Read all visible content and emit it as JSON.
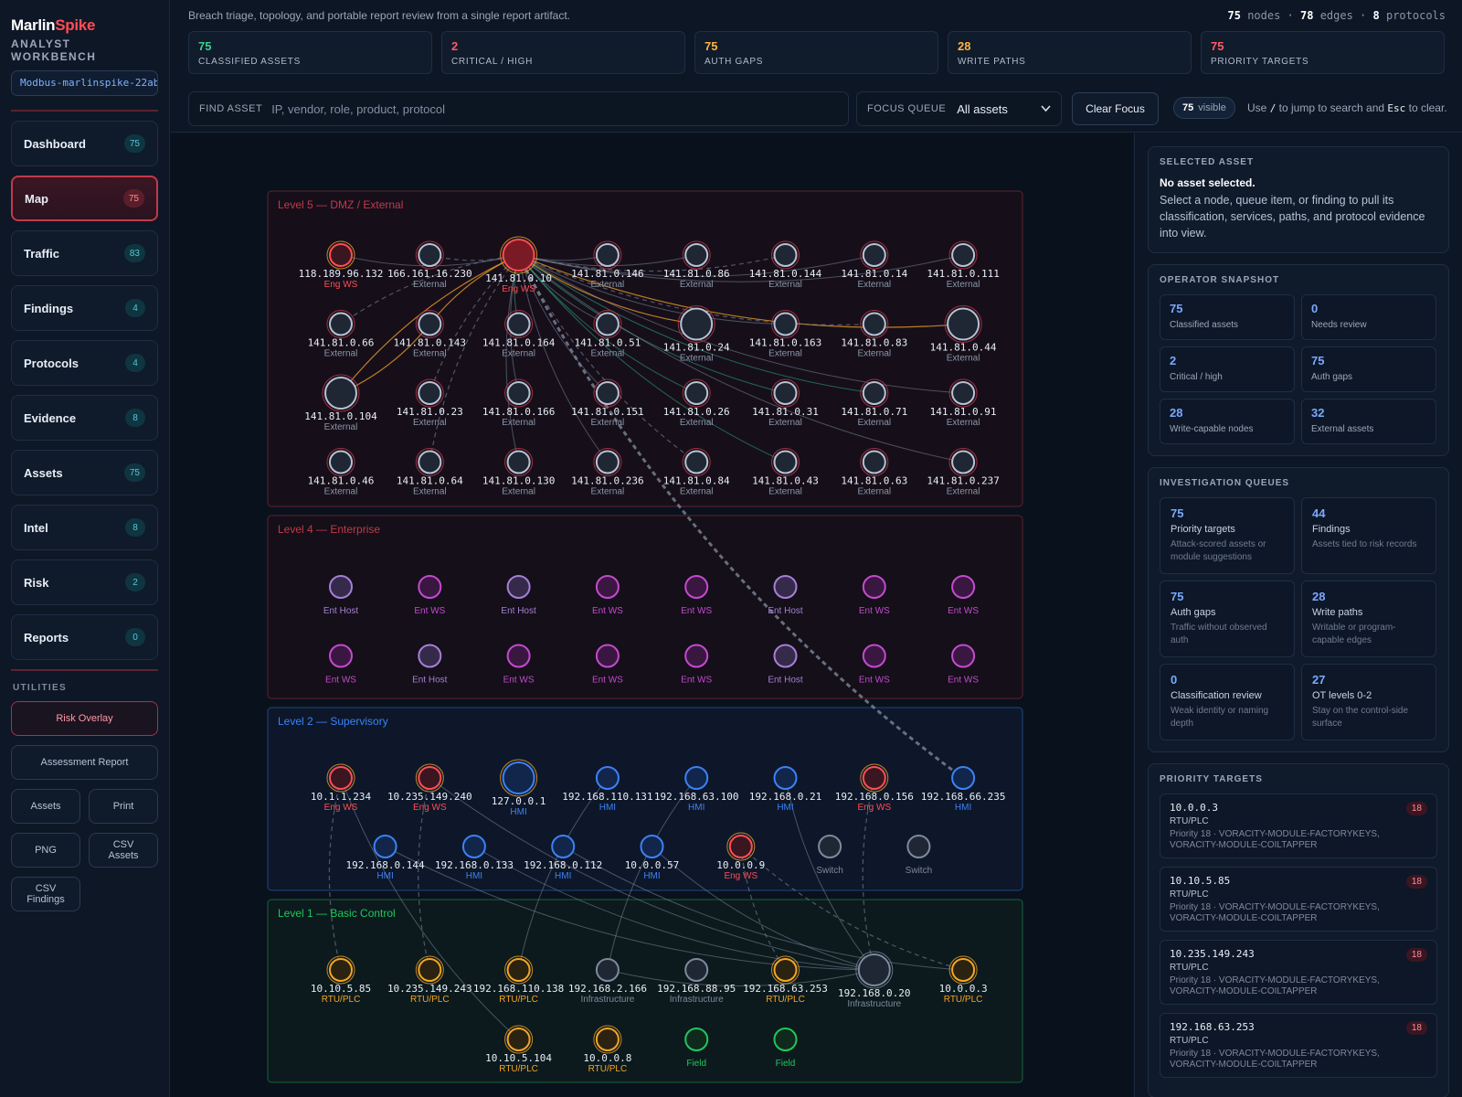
{
  "brand": {
    "name_a": "Marlin",
    "name_b": "Spike",
    "subtitle": "ANALYST WORKBENCH",
    "dataset": "Modbus-marlinspike-22ab"
  },
  "nav": [
    {
      "label": "Dashboard",
      "count": "75"
    },
    {
      "label": "Map",
      "count": "75",
      "active": true
    },
    {
      "label": "Traffic",
      "count": "83"
    },
    {
      "label": "Findings",
      "count": "4"
    },
    {
      "label": "Protocols",
      "count": "4"
    },
    {
      "label": "Evidence",
      "count": "8"
    },
    {
      "label": "Assets",
      "count": "75"
    },
    {
      "label": "Intel",
      "count": "8"
    },
    {
      "label": "Risk",
      "count": "2"
    },
    {
      "label": "Reports",
      "count": "0"
    }
  ],
  "utilities": {
    "title": "UTILITIES",
    "risk_overlay": "Risk Overlay",
    "assessment_report": "Assessment Report",
    "assets": "Assets",
    "print": "Print",
    "png": "PNG",
    "csv_assets": "CSV Assets",
    "csv_findings": "CSV Findings"
  },
  "header": {
    "tagline": "Breach triage, topology, and portable report review from a single report artifact.",
    "totals": {
      "nodes": "75",
      "nodes_label": "nodes",
      "edges": "78",
      "edges_label": "edges",
      "protocols": "8",
      "protocols_label": "protocols"
    },
    "stats": [
      {
        "value": "75",
        "label": "CLASSIFIED ASSETS",
        "color": "#3ecf8e"
      },
      {
        "value": "2",
        "label": "CRITICAL / HIGH",
        "color": "#ff5a64"
      },
      {
        "value": "75",
        "label": "AUTH GAPS",
        "color": "#ffb340"
      },
      {
        "value": "28",
        "label": "WRITE PATHS",
        "color": "#ffb340"
      },
      {
        "value": "75",
        "label": "PRIORITY TARGETS",
        "color": "#ff5a64"
      }
    ],
    "search_label": "FIND ASSET",
    "search_placeholder": "IP, vendor, role, product, protocol",
    "focus_label": "FOCUS QUEUE",
    "focus_value": "All assets",
    "clear_label": "Clear Focus",
    "visible_count": "75",
    "visible_label": "visible",
    "hint_a": "Use",
    "hint_key1": "/",
    "hint_b": "to jump to search and",
    "hint_key2": "Esc",
    "hint_c": "to clear."
  },
  "map": {
    "colors": {
      "eng": "#ff4d55",
      "external": "#8a97a9",
      "hmi": "#3b82f6",
      "plc": "#f5a524",
      "field": "#22c55e",
      "entws": "#c44ad0",
      "enthost": "#a67fd6",
      "infra": "#7d8a9c"
    },
    "zones": [
      {
        "id": "l5",
        "title": "Level 5 — DMZ / External",
        "color": "#c2394a"
      },
      {
        "id": "l4",
        "title": "Level 4 — Enterprise",
        "color": "#c2394a"
      },
      {
        "id": "l2",
        "title": "Level 2 — Supervisory",
        "color": "#3b82f6"
      },
      {
        "id": "l1",
        "title": "Level 1 — Basic Control",
        "color": "#22c55e"
      }
    ],
    "nodes": [
      {
        "id": "n0",
        "zone": "l5",
        "ip": "118.189.96.132",
        "role": "Eng WS",
        "type": "eng"
      },
      {
        "id": "n1",
        "zone": "l5",
        "ip": "166.161.16.230",
        "role": "External",
        "type": "external"
      },
      {
        "id": "n2",
        "zone": "l5",
        "ip": "141.81.0.10",
        "role": "Eng WS",
        "type": "eng",
        "big": true
      },
      {
        "id": "n3",
        "zone": "l5",
        "ip": "141.81.0.146",
        "role": "External",
        "type": "external"
      },
      {
        "id": "n4",
        "zone": "l5",
        "ip": "141.81.0.86",
        "role": "External",
        "type": "external"
      },
      {
        "id": "n5",
        "zone": "l5",
        "ip": "141.81.0.144",
        "role": "External",
        "type": "external"
      },
      {
        "id": "n6",
        "zone": "l5",
        "ip": "141.81.0.14",
        "role": "External",
        "type": "external"
      },
      {
        "id": "n7",
        "zone": "l5",
        "ip": "141.81.0.111",
        "role": "External",
        "type": "external"
      },
      {
        "id": "n8",
        "zone": "l5",
        "ip": "141.81.0.66",
        "role": "External",
        "type": "external"
      },
      {
        "id": "n9",
        "zone": "l5",
        "ip": "141.81.0.143",
        "role": "External",
        "type": "external"
      },
      {
        "id": "n10",
        "zone": "l5",
        "ip": "141.81.0.164",
        "role": "External",
        "type": "external"
      },
      {
        "id": "n11",
        "zone": "l5",
        "ip": "141.81.0.51",
        "role": "External",
        "type": "external"
      },
      {
        "id": "n12",
        "zone": "l5",
        "ip": "141.81.0.24",
        "role": "External",
        "type": "external",
        "big": true
      },
      {
        "id": "n13",
        "zone": "l5",
        "ip": "141.81.0.163",
        "role": "External",
        "type": "external"
      },
      {
        "id": "n14",
        "zone": "l5",
        "ip": "141.81.0.83",
        "role": "External",
        "type": "external"
      },
      {
        "id": "n15",
        "zone": "l5",
        "ip": "141.81.0.44",
        "role": "External",
        "type": "external",
        "big": true
      },
      {
        "id": "n16",
        "zone": "l5",
        "ip": "141.81.0.104",
        "role": "External",
        "type": "external",
        "big": true
      },
      {
        "id": "n17",
        "zone": "l5",
        "ip": "141.81.0.23",
        "role": "External",
        "type": "external"
      },
      {
        "id": "n18",
        "zone": "l5",
        "ip": "141.81.0.166",
        "role": "External",
        "type": "external"
      },
      {
        "id": "n19",
        "zone": "l5",
        "ip": "141.81.0.151",
        "role": "External",
        "type": "external"
      },
      {
        "id": "n20",
        "zone": "l5",
        "ip": "141.81.0.26",
        "role": "External",
        "type": "external"
      },
      {
        "id": "n21",
        "zone": "l5",
        "ip": "141.81.0.31",
        "role": "External",
        "type": "external"
      },
      {
        "id": "n22",
        "zone": "l5",
        "ip": "141.81.0.71",
        "role": "External",
        "type": "external"
      },
      {
        "id": "n23",
        "zone": "l5",
        "ip": "141.81.0.91",
        "role": "External",
        "type": "external"
      },
      {
        "id": "n24",
        "zone": "l5",
        "ip": "141.81.0.46",
        "role": "External",
        "type": "external"
      },
      {
        "id": "n25",
        "zone": "l5",
        "ip": "141.81.0.64",
        "role": "External",
        "type": "external"
      },
      {
        "id": "n26",
        "zone": "l5",
        "ip": "141.81.0.130",
        "role": "External",
        "type": "external"
      },
      {
        "id": "n27",
        "zone": "l5",
        "ip": "141.81.0.236",
        "role": "External",
        "type": "external"
      },
      {
        "id": "n28",
        "zone": "l5",
        "ip": "141.81.0.84",
        "role": "External",
        "type": "external"
      },
      {
        "id": "n29",
        "zone": "l5",
        "ip": "141.81.0.43",
        "role": "External",
        "type": "external"
      },
      {
        "id": "n30",
        "zone": "l5",
        "ip": "141.81.0.63",
        "role": "External",
        "type": "external"
      },
      {
        "id": "n31",
        "zone": "l5",
        "ip": "141.81.0.237",
        "role": "External",
        "type": "external"
      },
      {
        "id": "e0",
        "zone": "l4",
        "ip": "",
        "role": "Ent Host",
        "type": "enthost"
      },
      {
        "id": "e1",
        "zone": "l4",
        "ip": "",
        "role": "Ent WS",
        "type": "entws"
      },
      {
        "id": "e2",
        "zone": "l4",
        "ip": "",
        "role": "Ent Host",
        "type": "enthost"
      },
      {
        "id": "e3",
        "zone": "l4",
        "ip": "",
        "role": "Ent WS",
        "type": "entws"
      },
      {
        "id": "e4",
        "zone": "l4",
        "ip": "",
        "role": "Ent WS",
        "type": "entws"
      },
      {
        "id": "e5",
        "zone": "l4",
        "ip": "",
        "role": "Ent Host",
        "type": "enthost"
      },
      {
        "id": "e6",
        "zone": "l4",
        "ip": "",
        "role": "Ent WS",
        "type": "entws"
      },
      {
        "id": "e7",
        "zone": "l4",
        "ip": "",
        "role": "Ent WS",
        "type": "entws"
      },
      {
        "id": "e8",
        "zone": "l4",
        "ip": "",
        "role": "Ent WS",
        "type": "entws"
      },
      {
        "id": "e9",
        "zone": "l4",
        "ip": "",
        "role": "Ent Host",
        "type": "enthost"
      },
      {
        "id": "e10",
        "zone": "l4",
        "ip": "",
        "role": "Ent WS",
        "type": "entws"
      },
      {
        "id": "e11",
        "zone": "l4",
        "ip": "",
        "role": "Ent WS",
        "type": "entws"
      },
      {
        "id": "e12",
        "zone": "l4",
        "ip": "",
        "role": "Ent WS",
        "type": "entws"
      },
      {
        "id": "e13",
        "zone": "l4",
        "ip": "",
        "role": "Ent Host",
        "type": "enthost"
      },
      {
        "id": "e14",
        "zone": "l4",
        "ip": "",
        "role": "Ent WS",
        "type": "entws"
      },
      {
        "id": "e15",
        "zone": "l4",
        "ip": "",
        "role": "Ent WS",
        "type": "entws"
      },
      {
        "id": "s0",
        "zone": "l2",
        "ip": "10.1.1.234",
        "role": "Eng WS",
        "type": "eng"
      },
      {
        "id": "s1",
        "zone": "l2",
        "ip": "10.235.149.240",
        "role": "Eng WS",
        "type": "eng"
      },
      {
        "id": "s2",
        "zone": "l2",
        "ip": "127.0.0.1",
        "role": "HMI",
        "type": "hmi",
        "big": true
      },
      {
        "id": "s3",
        "zone": "l2",
        "ip": "192.168.110.131",
        "role": "HMI",
        "type": "hmi"
      },
      {
        "id": "s4",
        "zone": "l2",
        "ip": "192.168.63.100",
        "role": "HMI",
        "type": "hmi"
      },
      {
        "id": "s5",
        "zone": "l2",
        "ip": "192.168.0.21",
        "role": "HMI",
        "type": "hmi"
      },
      {
        "id": "s6",
        "zone": "l2",
        "ip": "192.168.0.156",
        "role": "Eng WS",
        "type": "eng"
      },
      {
        "id": "s7",
        "zone": "l2",
        "ip": "192.168.66.235",
        "role": "HMI",
        "type": "hmi"
      },
      {
        "id": "s8",
        "zone": "l2",
        "ip": "192.168.0.144",
        "role": "HMI",
        "type": "hmi"
      },
      {
        "id": "s9",
        "zone": "l2",
        "ip": "192.168.0.133",
        "role": "HMI",
        "type": "hmi"
      },
      {
        "id": "s10",
        "zone": "l2",
        "ip": "192.168.0.112",
        "role": "HMI",
        "type": "hmi"
      },
      {
        "id": "s11",
        "zone": "l2",
        "ip": "10.0.0.57",
        "role": "HMI",
        "type": "hmi"
      },
      {
        "id": "s12",
        "zone": "l2",
        "ip": "10.0.0.9",
        "role": "Eng WS",
        "type": "eng"
      },
      {
        "id": "s13",
        "zone": "l2",
        "ip": "",
        "role": "Switch",
        "type": "infra"
      },
      {
        "id": "s14",
        "zone": "l2",
        "ip": "",
        "role": "Switch",
        "type": "infra"
      },
      {
        "id": "b0",
        "zone": "l1",
        "ip": "10.10.5.85",
        "role": "RTU/PLC",
        "type": "plc"
      },
      {
        "id": "b1",
        "zone": "l1",
        "ip": "10.235.149.243",
        "role": "RTU/PLC",
        "type": "plc"
      },
      {
        "id": "b2",
        "zone": "l1",
        "ip": "192.168.110.138",
        "role": "RTU/PLC",
        "type": "plc"
      },
      {
        "id": "b3",
        "zone": "l1",
        "ip": "192.168.2.166",
        "role": "Infrastructure",
        "type": "infra"
      },
      {
        "id": "b4",
        "zone": "l1",
        "ip": "192.168.88.95",
        "role": "Infrastructure",
        "type": "infra"
      },
      {
        "id": "b5",
        "zone": "l1",
        "ip": "192.168.63.253",
        "role": "RTU/PLC",
        "type": "plc"
      },
      {
        "id": "b6",
        "zone": "l1",
        "ip": "192.168.0.20",
        "role": "Infrastructure",
        "type": "infra",
        "big": true
      },
      {
        "id": "b7",
        "zone": "l1",
        "ip": "10.0.0.3",
        "role": "RTU/PLC",
        "type": "plc"
      },
      {
        "id": "b8",
        "zone": "l1",
        "ip": "10.10.5.104",
        "role": "RTU/PLC",
        "type": "plc"
      },
      {
        "id": "b9",
        "zone": "l1",
        "ip": "10.0.0.8",
        "role": "RTU/PLC",
        "type": "plc"
      },
      {
        "id": "b10",
        "zone": "l1",
        "ip": "",
        "role": "Field",
        "type": "field"
      },
      {
        "id": "b11",
        "zone": "l1",
        "ip": "",
        "role": "Field",
        "type": "field"
      }
    ],
    "edges": [
      {
        "from": "n2",
        "to": "n3",
        "kind": "solid"
      },
      {
        "from": "n2",
        "to": "n4",
        "kind": "solid"
      },
      {
        "from": "n2",
        "to": "n5",
        "kind": "dashed"
      },
      {
        "from": "n2",
        "to": "n6",
        "kind": "solid"
      },
      {
        "from": "n2",
        "to": "n7",
        "kind": "solid"
      },
      {
        "from": "n2",
        "to": "n15",
        "kind": "write"
      },
      {
        "from": "n2",
        "to": "n12",
        "kind": "write"
      },
      {
        "from": "n2",
        "to": "n16",
        "kind": "write"
      },
      {
        "from": "n2",
        "to": "n9",
        "kind": "write"
      },
      {
        "from": "n2",
        "to": "n11",
        "kind": "solid"
      },
      {
        "from": "n2",
        "to": "n13",
        "kind": "solid"
      },
      {
        "from": "n2",
        "to": "n14",
        "kind": "dashed"
      },
      {
        "from": "n2",
        "to": "n20",
        "kind": "green"
      },
      {
        "from": "n2",
        "to": "n21",
        "kind": "green"
      },
      {
        "from": "n2",
        "to": "n22",
        "kind": "green"
      },
      {
        "from": "n2",
        "to": "n19",
        "kind": "solid"
      },
      {
        "from": "n2",
        "to": "n18",
        "kind": "solid"
      },
      {
        "from": "n2",
        "to": "n17",
        "kind": "dashed"
      },
      {
        "from": "n2",
        "to": "n27",
        "kind": "solid"
      },
      {
        "from": "n2",
        "to": "n28",
        "kind": "dashed"
      },
      {
        "from": "n2",
        "to": "n26",
        "kind": "solid"
      },
      {
        "from": "n2",
        "to": "n25",
        "kind": "dashed"
      },
      {
        "from": "n2",
        "to": "n23",
        "kind": "solid"
      },
      {
        "from": "n2",
        "to": "n31",
        "kind": "solid"
      },
      {
        "from": "n2",
        "to": "n8",
        "kind": "dashed"
      },
      {
        "from": "n2",
        "to": "n10",
        "kind": "green"
      },
      {
        "from": "n2",
        "to": "n29",
        "kind": "green"
      },
      {
        "from": "n0",
        "to": "n2",
        "kind": "solid"
      },
      {
        "from": "n1",
        "to": "n2",
        "kind": "dashed"
      },
      {
        "from": "n16",
        "to": "n9",
        "kind": "write"
      },
      {
        "from": "n2",
        "to": "s7",
        "kind": "heavy"
      },
      {
        "from": "s0",
        "to": "b0",
        "kind": "dashed"
      },
      {
        "from": "s1",
        "to": "b1",
        "kind": "dashed"
      },
      {
        "from": "s0",
        "to": "b8",
        "kind": "solid"
      },
      {
        "from": "s3",
        "to": "b2",
        "kind": "solid"
      },
      {
        "from": "s4",
        "to": "b3",
        "kind": "solid"
      },
      {
        "from": "s5",
        "to": "b6",
        "kind": "solid"
      },
      {
        "from": "s6",
        "to": "b6",
        "kind": "dashed"
      },
      {
        "from": "s12",
        "to": "b5",
        "kind": "dashed"
      },
      {
        "from": "s12",
        "to": "b7",
        "kind": "dashed"
      },
      {
        "from": "s8",
        "to": "b6",
        "kind": "solid"
      },
      {
        "from": "s9",
        "to": "b6",
        "kind": "solid"
      },
      {
        "from": "s10",
        "to": "b7",
        "kind": "solid"
      },
      {
        "from": "b3",
        "to": "b6",
        "kind": "solid"
      },
      {
        "from": "s1",
        "to": "b6",
        "kind": "solid"
      },
      {
        "from": "s11",
        "to": "b6",
        "kind": "solid"
      }
    ]
  },
  "panel": {
    "selected": {
      "title": "SELECTED ASSET",
      "headline": "No asset selected.",
      "body": "Select a node, queue item, or finding to pull its classification, services, paths, and protocol evidence into view."
    },
    "snapshot": {
      "title": "OPERATOR SNAPSHOT",
      "items": [
        {
          "n": "75",
          "c": "Classified assets"
        },
        {
          "n": "0",
          "c": "Needs review"
        },
        {
          "n": "2",
          "c": "Critical / high"
        },
        {
          "n": "75",
          "c": "Auth gaps"
        },
        {
          "n": "28",
          "c": "Write-capable nodes"
        },
        {
          "n": "32",
          "c": "External assets"
        }
      ]
    },
    "queues": {
      "title": "INVESTIGATION QUEUES",
      "items": [
        {
          "n": "75",
          "t": "Priority targets",
          "d": "Attack-scored assets or module suggestions"
        },
        {
          "n": "44",
          "t": "Findings",
          "d": "Assets tied to risk records"
        },
        {
          "n": "75",
          "t": "Auth gaps",
          "d": "Traffic without observed auth"
        },
        {
          "n": "28",
          "t": "Write paths",
          "d": "Writable or program-capable edges"
        },
        {
          "n": "0",
          "t": "Classification review",
          "d": "Weak identity or naming depth"
        },
        {
          "n": "27",
          "t": "OT levels 0-2",
          "d": "Stay on the control-side surface"
        }
      ]
    },
    "priority": {
      "title": "PRIORITY TARGETS",
      "items": [
        {
          "ip": "10.0.0.3",
          "role": "RTU/PLC",
          "desc": "Priority 18 · VORACITY-MODULE-FACTORYKEYS, VORACITY-MODULE-COILTAPPER",
          "score": "18"
        },
        {
          "ip": "10.10.5.85",
          "role": "RTU/PLC",
          "desc": "Priority 18 · VORACITY-MODULE-FACTORYKEYS, VORACITY-MODULE-COILTAPPER",
          "score": "18"
        },
        {
          "ip": "10.235.149.243",
          "role": "RTU/PLC",
          "desc": "Priority 18 · VORACITY-MODULE-FACTORYKEYS, VORACITY-MODULE-COILTAPPER",
          "score": "18"
        },
        {
          "ip": "192.168.63.253",
          "role": "RTU/PLC",
          "desc": "Priority 18 · VORACITY-MODULE-FACTORYKEYS, VORACITY-MODULE-COILTAPPER",
          "score": "18"
        }
      ]
    }
  }
}
